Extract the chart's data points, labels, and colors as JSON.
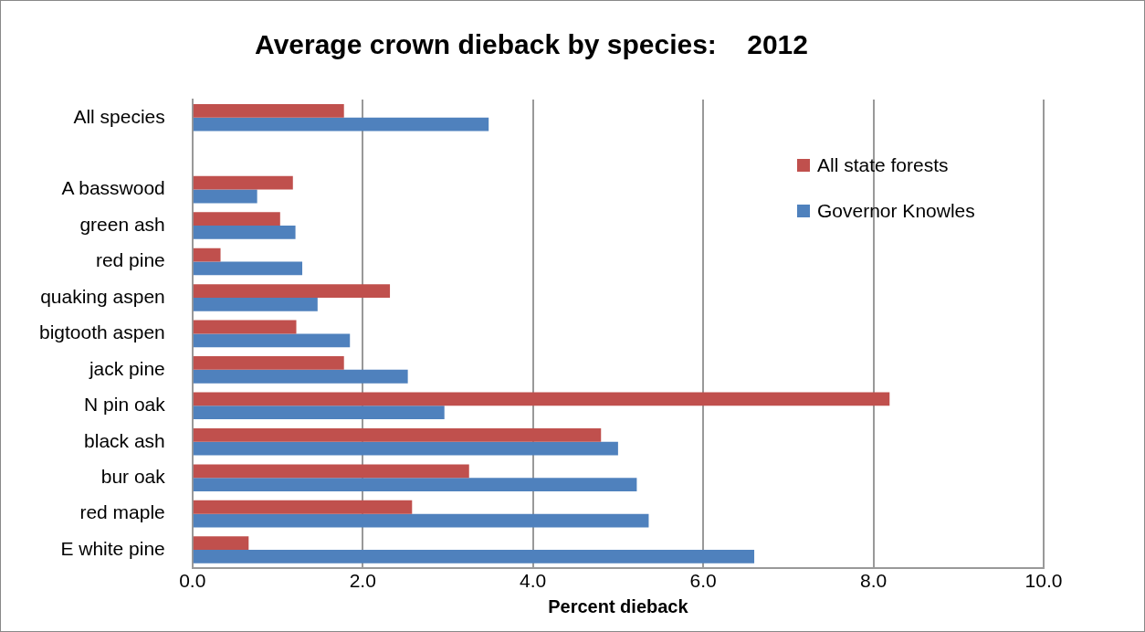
{
  "chart_data": {
    "type": "bar",
    "orientation": "horizontal",
    "title": "Average crown dieback by species:    2012",
    "xlabel": "Percent dieback",
    "categories": [
      "All species",
      null,
      "A basswood",
      "green ash",
      "red pine",
      "quaking aspen",
      "bigtooth aspen",
      "jack pine",
      "N pin oak",
      "black ash",
      "bur oak",
      "red maple",
      "E white pine"
    ],
    "series": [
      {
        "name": "All state forests",
        "color": "#c0504d",
        "values": [
          1.78,
          null,
          1.18,
          1.03,
          0.33,
          2.32,
          1.22,
          1.78,
          8.19,
          4.8,
          3.25,
          2.58,
          0.66
        ]
      },
      {
        "name": "Governor Knowles",
        "color": "#4f81bd",
        "values": [
          3.48,
          null,
          0.76,
          1.21,
          1.29,
          1.47,
          1.85,
          2.53,
          2.96,
          5.0,
          5.22,
          5.36,
          6.6
        ]
      }
    ],
    "xlim": [
      0,
      10
    ],
    "xticks": [
      {
        "value": 0,
        "label": "0.0"
      },
      {
        "value": 2,
        "label": "2.0"
      },
      {
        "value": 4,
        "label": "4.0"
      },
      {
        "value": 6,
        "label": "6.0"
      },
      {
        "value": 8,
        "label": "8.0"
      },
      {
        "value": 10,
        "label": "10.0"
      }
    ],
    "grid": "x",
    "legend": "top right"
  }
}
